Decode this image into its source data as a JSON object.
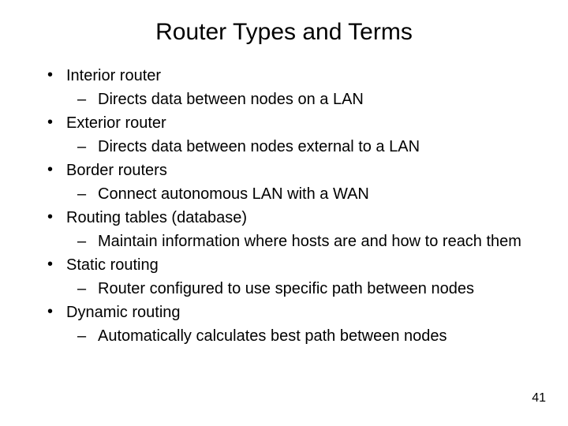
{
  "title": "Router Types and Terms",
  "page_number": "41",
  "colors": {
    "background": "#ffffff",
    "text": "#000000"
  },
  "typography": {
    "title_fontsize": 30,
    "body_fontsize": 20,
    "pagenum_fontsize": 16,
    "font_family": "Arial"
  },
  "bullets": [
    {
      "text": "Interior router",
      "subs": [
        "Directs data between nodes on a LAN"
      ]
    },
    {
      "text": "Exterior router",
      "subs": [
        "Directs data between nodes external to a LAN"
      ]
    },
    {
      "text": "Border routers",
      "subs": [
        "Connect autonomous LAN with a WAN"
      ]
    },
    {
      "text": "Routing tables (database)",
      "subs": [
        "Maintain information where hosts are and how to reach them"
      ]
    },
    {
      "text": "Static routing",
      "subs": [
        "Router configured to use specific path between nodes"
      ]
    },
    {
      "text": "Dynamic routing",
      "subs": [
        "Automatically calculates best path between nodes"
      ]
    }
  ]
}
